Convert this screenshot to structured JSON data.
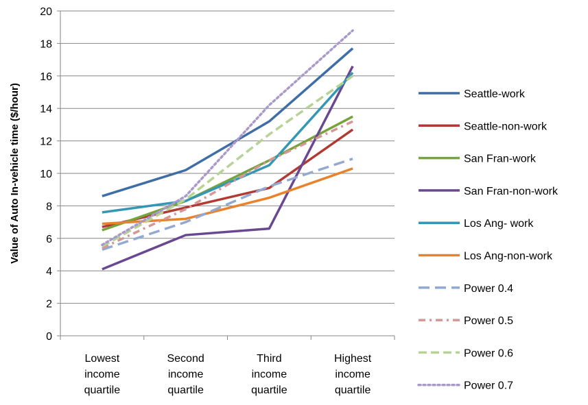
{
  "chart_data": {
    "type": "line",
    "title": "",
    "xlabel": "",
    "ylabel": "Value of Auto In-vehicle time ($/hour)",
    "ylim": [
      0,
      20
    ],
    "yticks": [
      "0",
      "2",
      "4",
      "6",
      "8",
      "10",
      "12",
      "14",
      "16",
      "18",
      "20"
    ],
    "grid": "horizontal",
    "legend_position": "right",
    "categories": [
      [
        "Lowest",
        "income",
        "quartile"
      ],
      [
        "Second",
        "income",
        "quartile"
      ],
      [
        "Third",
        "income",
        "quartile"
      ],
      [
        "Highest",
        "income",
        "quartile"
      ]
    ],
    "series": [
      {
        "name": "Seattle-work",
        "values": [
          8.6,
          10.2,
          13.2,
          17.7
        ],
        "color": "#3F6EA6",
        "dash": "solid"
      },
      {
        "name": "Seattle-non-work",
        "values": [
          6.7,
          7.9,
          9.1,
          12.7
        ],
        "color": "#B13B33",
        "dash": "solid"
      },
      {
        "name": "San Fran-work",
        "values": [
          6.5,
          8.3,
          10.8,
          13.5
        ],
        "color": "#77A33E",
        "dash": "solid"
      },
      {
        "name": "San Fran-non-work",
        "values": [
          4.1,
          6.2,
          6.6,
          16.6
        ],
        "color": "#6A4891",
        "dash": "solid"
      },
      {
        "name": "Los Ang- work",
        "values": [
          7.6,
          8.3,
          10.5,
          16.2
        ],
        "color": "#3497B4",
        "dash": "solid"
      },
      {
        "name": "Los Ang-non-work",
        "values": [
          6.9,
          7.2,
          8.5,
          10.3
        ],
        "color": "#E8832C",
        "dash": "solid"
      },
      {
        "name": "Power 0.4",
        "values": [
          5.3,
          7.0,
          9.2,
          10.9
        ],
        "color": "#92A9D4",
        "dash": "longdash"
      },
      {
        "name": "Power 0.5",
        "values": [
          5.4,
          7.8,
          10.8,
          13.2
        ],
        "color": "#D59796",
        "dash": "dashdot"
      },
      {
        "name": "Power 0.6",
        "values": [
          5.5,
          8.4,
          12.4,
          16.0
        ],
        "color": "#B6D294",
        "dash": "dash"
      },
      {
        "name": "Power 0.7",
        "values": [
          5.6,
          8.6,
          14.2,
          18.8
        ],
        "color": "#A99ACB",
        "dash": "dot"
      }
    ]
  }
}
